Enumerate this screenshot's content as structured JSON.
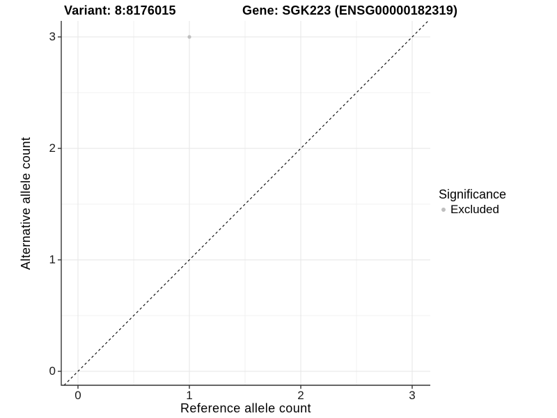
{
  "chart_data": {
    "type": "scatter",
    "titles": {
      "left": "Variant: 8:8176015",
      "right": "Gene: SGK223 (ENSG00000182319)"
    },
    "xlabel": "Reference allele count",
    "ylabel": "Alternative allele count",
    "x_ticks": [
      "0",
      "1",
      "2",
      "3"
    ],
    "y_ticks": [
      "0",
      "1",
      "2",
      "3"
    ],
    "x_tick_values": [
      0,
      1,
      2,
      3
    ],
    "y_tick_values": [
      0,
      1,
      2,
      3
    ],
    "xlim": [
      -0.15,
      3.1625
    ],
    "ylim": [
      -0.125,
      3.14375
    ],
    "grid": {
      "major": true,
      "minor": true,
      "minor_step": 0.5
    },
    "reference_line": {
      "type": "identity y=x",
      "style": "dashed",
      "color": "#000000"
    },
    "points": [
      {
        "x": 1,
        "y": 3,
        "significance": "Excluded"
      }
    ],
    "legend": {
      "position": "right",
      "title": "Significance",
      "entries": [
        {
          "label": "Excluded",
          "color": "#bfbfbf",
          "marker": "dot"
        }
      ]
    },
    "colors": {
      "point": "#bfbfbf",
      "grid_major": "#e5e5e5",
      "grid_minor": "#f1f1f1",
      "axis_line": "#333333",
      "background": "#ffffff"
    }
  }
}
